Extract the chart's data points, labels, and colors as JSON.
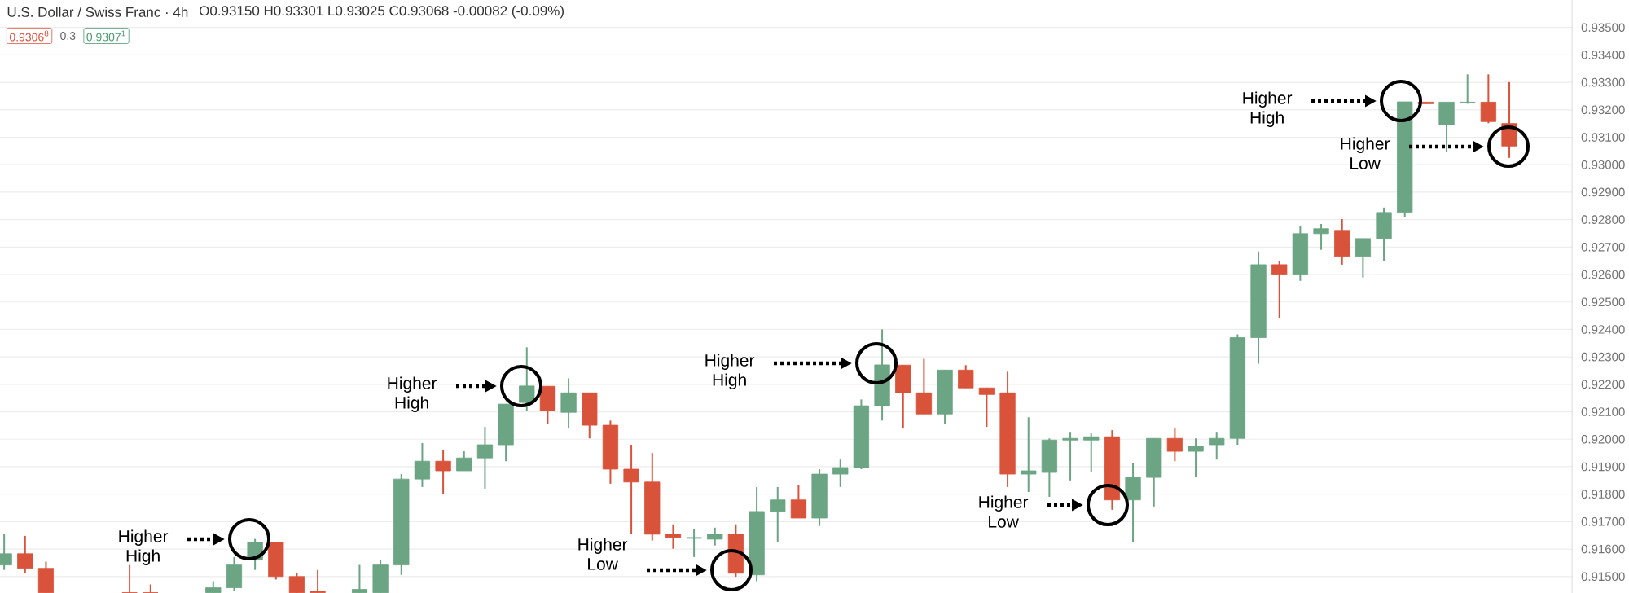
{
  "chart_data": {
    "type": "candlestick",
    "title": "U.S. Dollar / Swiss Franc · 4h",
    "subtitle": "O0.93150 H0.93301 L0.93025 C0.93068 -0.00082 (-0.09%)",
    "categories": [
      null,
      null,
      null,
      null,
      null,
      null,
      null,
      null,
      null,
      null,
      null,
      null,
      null,
      null,
      null,
      null,
      null,
      null,
      null,
      null,
      null,
      null,
      null,
      null,
      null,
      null,
      null,
      null,
      null,
      null,
      null,
      null,
      null,
      null,
      null,
      null,
      null,
      null,
      null,
      null,
      null,
      null,
      null,
      null,
      null,
      null,
      null,
      null,
      null,
      null,
      null,
      null,
      null,
      null,
      null,
      null,
      null,
      null,
      null,
      null,
      null,
      null,
      null,
      null,
      null,
      null,
      null,
      null,
      null,
      null,
      null,
      null,
      null
    ],
    "ohlc": [
      [
        0.91542,
        0.91654,
        0.91524,
        0.91583
      ],
      [
        0.91583,
        0.91648,
        0.91512,
        0.9153
      ],
      [
        0.9153,
        0.91554,
        0.91441,
        0.91441
      ],
      null,
      null,
      null,
      [
        0.91441,
        0.91542,
        0.91441,
        0.91441
      ],
      [
        0.91441,
        0.91471,
        0.91441,
        0.91441
      ],
      null,
      null,
      [
        0.91441,
        0.91483,
        0.91441,
        0.91459
      ],
      [
        0.91459,
        0.91571,
        0.91447,
        0.91542
      ],
      [
        0.9156,
        0.91637,
        0.91524,
        0.91625
      ],
      [
        0.91625,
        0.91625,
        0.91489,
        0.915
      ],
      [
        0.915,
        0.91512,
        0.91441,
        0.91441
      ],
      [
        0.91447,
        0.91524,
        0.91441,
        0.91441
      ],
      null,
      [
        0.91441,
        0.91542,
        0.91441,
        0.91453
      ],
      [
        0.91441,
        0.9156,
        0.91441,
        0.91542
      ],
      [
        0.91542,
        0.91873,
        0.91506,
        0.91855
      ],
      [
        0.91855,
        0.91986,
        0.91826,
        0.9192
      ],
      [
        0.9192,
        0.91962,
        0.91802,
        0.91885
      ],
      [
        0.91885,
        0.91956,
        0.91885,
        0.91932
      ],
      [
        0.91932,
        0.92045,
        0.9182,
        0.9198
      ],
      [
        0.9198,
        0.92128,
        0.9192,
        0.92128
      ],
      [
        0.92134,
        0.92335,
        0.92104,
        0.92194
      ],
      [
        0.92193,
        0.92193,
        0.92057,
        0.92104
      ],
      [
        0.92098,
        0.92222,
        0.92039,
        0.92169
      ],
      [
        0.92169,
        0.92169,
        0.92003,
        0.92051
      ],
      [
        0.92051,
        0.92068,
        0.91838,
        0.91891
      ],
      [
        0.91891,
        0.9198,
        0.91654,
        0.91844
      ],
      [
        0.91844,
        0.9195,
        0.91631,
        0.91654
      ],
      [
        0.91654,
        0.9169,
        0.91601,
        0.91642
      ],
      [
        0.91639,
        0.91672,
        0.91571,
        0.91642
      ],
      [
        0.91636,
        0.91678,
        0.91613,
        0.91654
      ],
      [
        0.91654,
        0.9169,
        0.91499,
        0.91512
      ],
      [
        0.91506,
        0.91826,
        0.91483,
        0.91737
      ],
      [
        0.91737,
        0.91826,
        0.91625,
        0.91779
      ],
      [
        0.91779,
        0.91832,
        0.91713,
        0.91713
      ],
      [
        0.91713,
        0.91891,
        0.91684,
        0.91873
      ],
      [
        0.91873,
        0.91926,
        0.91826,
        0.91897
      ],
      [
        0.91897,
        0.92145,
        0.91891,
        0.92122
      ],
      [
        0.92122,
        0.924,
        0.92068,
        0.92271
      ],
      [
        0.9227,
        0.9227,
        0.92039,
        0.92169
      ],
      [
        0.92169,
        0.92293,
        0.92092,
        0.92092
      ],
      [
        0.92092,
        0.92252,
        0.92057,
        0.92252
      ],
      [
        0.92252,
        0.9227,
        0.92187,
        0.92187
      ],
      [
        0.92187,
        0.92187,
        0.92045,
        0.92163
      ],
      [
        0.92169,
        0.92246,
        0.91826,
        0.91873
      ],
      [
        0.91873,
        0.9208,
        0.91808,
        0.91885
      ],
      [
        0.91879,
        0.92003,
        0.9179,
        0.91997
      ],
      [
        0.91997,
        0.92027,
        0.9185,
        0.92003
      ],
      [
        0.91997,
        0.92021,
        0.91879,
        0.92009
      ],
      [
        0.92009,
        0.92033,
        0.91743,
        0.91779
      ],
      [
        0.91779,
        0.91915,
        0.91625,
        0.91861
      ],
      [
        0.91861,
        0.92003,
        0.91755,
        0.92003
      ],
      [
        0.92003,
        0.92039,
        0.9192,
        0.91956
      ],
      [
        0.91956,
        0.92003,
        0.91861,
        0.91974
      ],
      [
        0.9198,
        0.92027,
        0.91926,
        0.92003
      ],
      [
        0.92003,
        0.92382,
        0.9198,
        0.9237
      ],
      [
        0.9237,
        0.92684,
        0.92275,
        0.92636
      ],
      [
        0.92636,
        0.92648,
        0.92441,
        0.92601
      ],
      [
        0.92601,
        0.92778,
        0.92577,
        0.92749
      ],
      [
        0.92749,
        0.92784,
        0.9269,
        0.92767
      ],
      [
        0.92761,
        0.92802,
        0.92636,
        0.92666
      ],
      [
        0.92666,
        0.92731,
        0.92589,
        0.92731
      ],
      [
        0.92731,
        0.92844,
        0.92648,
        0.92826
      ],
      [
        0.92826,
        0.93229,
        0.92808,
        0.93229
      ],
      [
        0.93228,
        0.93228,
        0.93222,
        0.93222
      ],
      [
        0.93145,
        0.93228,
        0.93045,
        0.93228
      ],
      [
        0.93225,
        0.93329,
        0.93222,
        0.93228
      ],
      [
        0.93228,
        0.93329,
        0.93151,
        0.93157
      ],
      [
        0.9315,
        0.93301,
        0.93025,
        0.93068
      ]
    ],
    "colors": [
      "#6ba583",
      "#d9533b",
      "#d9533b",
      null,
      null,
      null,
      "#d9533b",
      "#d9533b",
      null,
      null,
      "#6ba583",
      "#6ba583",
      "#6ba583",
      "#d9533b",
      "#d9533b",
      "#d9533b",
      null,
      "#6ba583",
      "#6ba583",
      "#6ba583",
      "#6ba583",
      "#d9533b",
      "#6ba583",
      "#6ba583",
      "#6ba583",
      "#6ba583",
      "#d9533b",
      "#6ba583",
      "#d9533b",
      "#d9533b",
      "#d9533b",
      "#d9533b",
      "#d9533b",
      "#6ba583",
      "#6ba583",
      "#d9533b",
      "#6ba583",
      "#6ba583",
      "#d9533b",
      "#6ba583",
      "#6ba583",
      "#6ba583",
      "#6ba583",
      "#d9533b",
      "#d9533b",
      "#6ba583",
      "#d9533b",
      "#d9533b",
      "#d9533b",
      "#6ba583",
      "#6ba583",
      "#6ba583",
      "#6ba583",
      "#d9533b",
      "#6ba583",
      "#6ba583",
      "#d9533b",
      "#6ba583",
      "#6ba583",
      "#6ba583",
      "#6ba583",
      "#d9533b",
      "#6ba583",
      "#6ba583",
      "#d9533b",
      "#6ba583",
      "#6ba583",
      "#6ba583",
      "#d9533b",
      "#6ba583",
      "#6ba583",
      "#d9533b",
      "#d9533b"
    ],
    "ylim": [
      0.9144,
      0.936
    ],
    "yticks": [
      {
        "value": 0.915,
        "label": "0.91500"
      },
      {
        "value": 0.916,
        "label": "0.91600"
      },
      {
        "value": 0.917,
        "label": "0.91700"
      },
      {
        "value": 0.918,
        "label": "0.91800"
      },
      {
        "value": 0.919,
        "label": "0.91900"
      },
      {
        "value": 0.92,
        "label": "0.92000"
      },
      {
        "value": 0.921,
        "label": "0.92100"
      },
      {
        "value": 0.922,
        "label": "0.92200"
      },
      {
        "value": 0.923,
        "label": "0.92300"
      },
      {
        "value": 0.924,
        "label": "0.92400"
      },
      {
        "value": 0.925,
        "label": "0.92500"
      },
      {
        "value": 0.926,
        "label": "0.92600"
      },
      {
        "value": 0.927,
        "label": "0.92700"
      },
      {
        "value": 0.928,
        "label": "0.92800"
      },
      {
        "value": 0.929,
        "label": "0.92900"
      },
      {
        "value": 0.93,
        "label": "0.93000"
      },
      {
        "value": 0.931,
        "label": "0.93100"
      },
      {
        "value": 0.932,
        "label": "0.93200"
      },
      {
        "value": 0.933,
        "label": "0.93300"
      },
      {
        "value": 0.934,
        "label": "0.93400"
      },
      {
        "value": 0.935,
        "label": "0.93500"
      }
    ],
    "grid": "y",
    "annotations": [
      "0.9306$^{8}$",
      "0.3",
      "0.9307$^{1}$",
      "Higher High",
      "Higher High",
      "Higher Low",
      "Higher High",
      "Higher Low",
      "Higher High",
      "Higher Low"
    ]
  }
}
